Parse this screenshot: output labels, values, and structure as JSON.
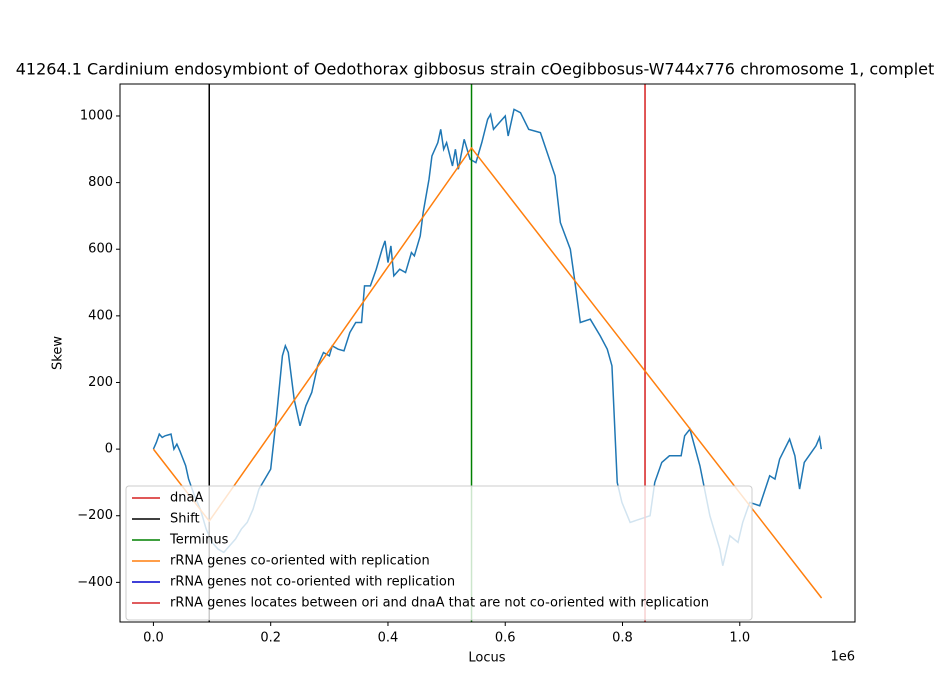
{
  "chart_data": {
    "type": "line",
    "title": "41264.1 Cardinium endosymbiont of Oedothorax gibbosus strain cOegibbosus-W744x776 chromosome 1, complet",
    "x_label": "Locus",
    "y_label": "Skew",
    "x_offset_label": "1e6",
    "xlim": [
      -57000,
      1196500
    ],
    "ylim": [
      -519,
      1096
    ],
    "xticks": [
      {
        "value": 0,
        "label": "0.0"
      },
      {
        "value": 200000,
        "label": "0.2"
      },
      {
        "value": 400000,
        "label": "0.4"
      },
      {
        "value": 600000,
        "label": "0.6"
      },
      {
        "value": 800000,
        "label": "0.8"
      },
      {
        "value": 1000000,
        "label": "1.0"
      }
    ],
    "yticks": [
      {
        "value": -400,
        "label": "−400"
      },
      {
        "value": -200,
        "label": "−200"
      },
      0,
      200,
      400,
      600,
      800,
      1000
    ],
    "legend_position": "lower left",
    "skew": {
      "color": "#1f77b4",
      "x": [
        0,
        5000,
        10000,
        15000,
        20000,
        30000,
        35000,
        40000,
        45000,
        55000,
        60000,
        70000,
        80000,
        90000,
        100000,
        110000,
        120000,
        130000,
        140000,
        150000,
        160000,
        170000,
        180000,
        190000,
        200000,
        210000,
        220000,
        225000,
        230000,
        240000,
        250000,
        260000,
        270000,
        280000,
        290000,
        300000,
        305000,
        315000,
        325000,
        335000,
        345000,
        355000,
        360000,
        370000,
        380000,
        390000,
        395000,
        400000,
        405000,
        410000,
        420000,
        430000,
        440000,
        445000,
        455000,
        460000,
        470000,
        475000,
        485000,
        490000,
        495000,
        500000,
        510000,
        515000,
        520000,
        530000,
        540000,
        550000,
        560000,
        570000,
        575000,
        580000,
        590000,
        600000,
        605000,
        615000,
        626000,
        640000,
        660000,
        685000,
        694000,
        711000,
        719000,
        728000,
        745000,
        762000,
        774000,
        782000,
        791000,
        799000,
        813000,
        830000,
        847000,
        855000,
        867000,
        880000,
        900000,
        906000,
        915000,
        932000,
        949000,
        966000,
        971000,
        983000,
        997000,
        1005000,
        1017000,
        1034000,
        1051000,
        1060000,
        1068000,
        1085000,
        1094000,
        1102000,
        1110000,
        1122000,
        1130000,
        1136000,
        1139000
      ],
      "values": [
        0,
        20,
        45,
        35,
        40,
        45,
        0,
        15,
        -5,
        -50,
        -90,
        -140,
        -180,
        -240,
        -280,
        -300,
        -310,
        -290,
        -270,
        -240,
        -220,
        -180,
        -120,
        -90,
        -60,
        100,
        280,
        310,
        290,
        150,
        70,
        130,
        170,
        250,
        290,
        280,
        310,
        300,
        295,
        350,
        380,
        380,
        490,
        490,
        540,
        600,
        625,
        560,
        610,
        520,
        540,
        530,
        590,
        580,
        640,
        710,
        810,
        880,
        920,
        960,
        900,
        920,
        850,
        900,
        840,
        930,
        870,
        860,
        920,
        990,
        1005,
        960,
        980,
        1000,
        940,
        1020,
        1010,
        960,
        950,
        820,
        680,
        600,
        500,
        380,
        390,
        340,
        300,
        250,
        -100,
        -160,
        -220,
        -210,
        -200,
        -100,
        -40,
        -20,
        -20,
        40,
        60,
        -50,
        -200,
        -300,
        -350,
        -260,
        -280,
        -220,
        -160,
        -170,
        -80,
        -90,
        -30,
        30,
        -20,
        -120,
        -40,
        -10,
        10,
        35,
        0
      ]
    },
    "series": [
      {
        "name": "dnaA",
        "color": "#d62020",
        "vline": 838400
      },
      {
        "name": "Shift",
        "color": "#000000",
        "vline": 95200
      },
      {
        "name": "Terminus",
        "color": "#008000",
        "vline": 542500
      },
      {
        "name": "rRNA genes co-oriented with replication",
        "color": "#ff7f0e",
        "x": [
          0,
          95200,
          542500,
          1139500
        ],
        "values": [
          0,
          -216,
          904,
          -447
        ]
      },
      {
        "name": "rRNA genes not co-oriented with replication",
        "color": "#0000cc"
      },
      {
        "name": "rRNA genes locates between ori and dnaA that are not co-oriented with replication",
        "color": "#d62728"
      }
    ]
  }
}
